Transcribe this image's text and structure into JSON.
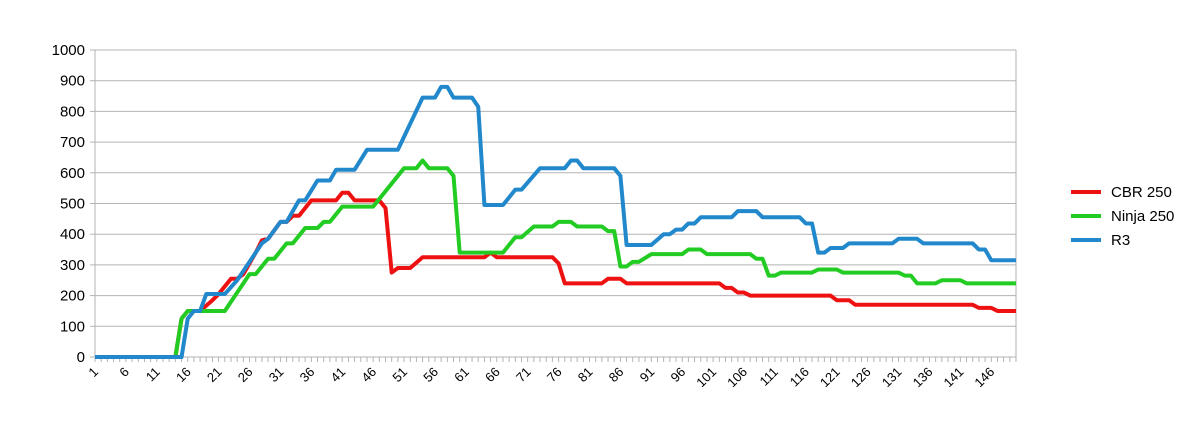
{
  "chart_data": {
    "type": "line",
    "title": "",
    "xlabel": "",
    "ylabel": "",
    "xlim": [
      1,
      150
    ],
    "ylim": [
      0,
      1000
    ],
    "yticks": [
      0,
      100,
      200,
      300,
      400,
      500,
      600,
      700,
      800,
      900,
      1000
    ],
    "xticks": [
      1,
      6,
      11,
      16,
      21,
      26,
      31,
      36,
      41,
      46,
      51,
      56,
      61,
      66,
      71,
      76,
      81,
      86,
      91,
      96,
      101,
      106,
      111,
      116,
      121,
      126,
      131,
      136,
      141,
      146
    ],
    "grid": true,
    "legend_position": "right",
    "series": [
      {
        "name": "CBR 250",
        "color": "#ee1111",
        "points": [
          [
            1,
            0
          ],
          [
            14,
            0
          ],
          [
            15,
            125
          ],
          [
            16,
            150
          ],
          [
            18,
            150
          ],
          [
            20,
            185
          ],
          [
            21,
            205
          ],
          [
            22,
            230
          ],
          [
            23,
            255
          ],
          [
            24,
            255
          ],
          [
            25,
            270
          ],
          [
            27,
            340
          ],
          [
            28,
            380
          ],
          [
            29,
            385
          ],
          [
            31,
            440
          ],
          [
            32,
            440
          ],
          [
            33,
            460
          ],
          [
            34,
            460
          ],
          [
            36,
            510
          ],
          [
            40,
            510
          ],
          [
            41,
            535
          ],
          [
            42,
            535
          ],
          [
            43,
            510
          ],
          [
            47,
            510
          ],
          [
            48,
            485
          ],
          [
            49,
            275
          ],
          [
            50,
            290
          ],
          [
            52,
            290
          ],
          [
            54,
            325
          ],
          [
            64,
            325
          ],
          [
            65,
            340
          ],
          [
            66,
            325
          ],
          [
            75,
            325
          ],
          [
            76,
            305
          ],
          [
            77,
            240
          ],
          [
            83,
            240
          ],
          [
            84,
            255
          ],
          [
            86,
            255
          ],
          [
            87,
            240
          ],
          [
            102,
            240
          ],
          [
            103,
            225
          ],
          [
            104,
            225
          ],
          [
            105,
            210
          ],
          [
            106,
            210
          ],
          [
            107,
            200
          ],
          [
            120,
            200
          ],
          [
            121,
            185
          ],
          [
            123,
            185
          ],
          [
            124,
            170
          ],
          [
            143,
            170
          ],
          [
            144,
            160
          ],
          [
            146,
            160
          ],
          [
            147,
            150
          ],
          [
            150,
            150
          ]
        ]
      },
      {
        "name": "Ninja 250",
        "color": "#22cc22",
        "points": [
          [
            1,
            0
          ],
          [
            14,
            0
          ],
          [
            15,
            125
          ],
          [
            16,
            150
          ],
          [
            22,
            150
          ],
          [
            23,
            180
          ],
          [
            25,
            240
          ],
          [
            26,
            270
          ],
          [
            27,
            270
          ],
          [
            29,
            320
          ],
          [
            30,
            320
          ],
          [
            32,
            370
          ],
          [
            33,
            370
          ],
          [
            35,
            420
          ],
          [
            37,
            420
          ],
          [
            38,
            440
          ],
          [
            39,
            440
          ],
          [
            41,
            490
          ],
          [
            46,
            490
          ],
          [
            51,
            615
          ],
          [
            53,
            615
          ],
          [
            54,
            640
          ],
          [
            55,
            615
          ],
          [
            58,
            615
          ],
          [
            59,
            590
          ],
          [
            60,
            340
          ],
          [
            67,
            340
          ],
          [
            69,
            390
          ],
          [
            70,
            390
          ],
          [
            72,
            425
          ],
          [
            75,
            425
          ],
          [
            76,
            440
          ],
          [
            78,
            440
          ],
          [
            79,
            425
          ],
          [
            83,
            425
          ],
          [
            84,
            410
          ],
          [
            85,
            410
          ],
          [
            86,
            295
          ],
          [
            87,
            295
          ],
          [
            88,
            310
          ],
          [
            89,
            310
          ],
          [
            91,
            335
          ],
          [
            96,
            335
          ],
          [
            97,
            350
          ],
          [
            99,
            350
          ],
          [
            100,
            335
          ],
          [
            107,
            335
          ],
          [
            108,
            320
          ],
          [
            109,
            320
          ],
          [
            110,
            265
          ],
          [
            111,
            265
          ],
          [
            112,
            275
          ],
          [
            117,
            275
          ],
          [
            118,
            285
          ],
          [
            121,
            285
          ],
          [
            122,
            275
          ],
          [
            131,
            275
          ],
          [
            132,
            265
          ],
          [
            133,
            265
          ],
          [
            134,
            240
          ],
          [
            137,
            240
          ],
          [
            138,
            250
          ],
          [
            141,
            250
          ],
          [
            142,
            240
          ],
          [
            150,
            240
          ]
        ]
      },
      {
        "name": "R3",
        "color": "#2288cc",
        "points": [
          [
            1,
            0
          ],
          [
            15,
            0
          ],
          [
            16,
            125
          ],
          [
            17,
            150
          ],
          [
            18,
            150
          ],
          [
            19,
            205
          ],
          [
            22,
            205
          ],
          [
            24,
            250
          ],
          [
            28,
            370
          ],
          [
            29,
            385
          ],
          [
            31,
            440
          ],
          [
            32,
            440
          ],
          [
            34,
            510
          ],
          [
            35,
            510
          ],
          [
            37,
            575
          ],
          [
            39,
            575
          ],
          [
            40,
            610
          ],
          [
            43,
            610
          ],
          [
            45,
            675
          ],
          [
            50,
            675
          ],
          [
            54,
            845
          ],
          [
            56,
            845
          ],
          [
            57,
            880
          ],
          [
            58,
            880
          ],
          [
            59,
            845
          ],
          [
            62,
            845
          ],
          [
            63,
            815
          ],
          [
            64,
            495
          ],
          [
            67,
            495
          ],
          [
            69,
            545
          ],
          [
            70,
            545
          ],
          [
            73,
            615
          ],
          [
            77,
            615
          ],
          [
            78,
            640
          ],
          [
            79,
            640
          ],
          [
            80,
            615
          ],
          [
            85,
            615
          ],
          [
            86,
            590
          ],
          [
            87,
            365
          ],
          [
            91,
            365
          ],
          [
            93,
            400
          ],
          [
            94,
            400
          ],
          [
            95,
            415
          ],
          [
            96,
            415
          ],
          [
            97,
            435
          ],
          [
            98,
            435
          ],
          [
            99,
            455
          ],
          [
            104,
            455
          ],
          [
            105,
            475
          ],
          [
            108,
            475
          ],
          [
            109,
            455
          ],
          [
            115,
            455
          ],
          [
            116,
            435
          ],
          [
            117,
            435
          ],
          [
            118,
            340
          ],
          [
            119,
            340
          ],
          [
            120,
            355
          ],
          [
            122,
            355
          ],
          [
            123,
            370
          ],
          [
            130,
            370
          ],
          [
            131,
            385
          ],
          [
            134,
            385
          ],
          [
            135,
            370
          ],
          [
            143,
            370
          ],
          [
            144,
            350
          ],
          [
            145,
            350
          ],
          [
            146,
            315
          ],
          [
            150,
            315
          ]
        ]
      }
    ]
  }
}
